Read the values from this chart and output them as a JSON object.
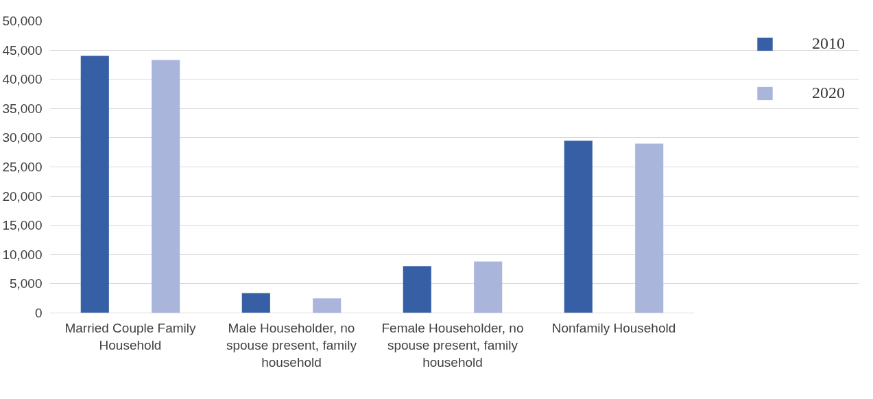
{
  "chart_data": {
    "type": "bar",
    "categories": [
      "Married Couple Family Household",
      "Male Householder, no spouse present, family household",
      "Female Householder, no spouse present, family household",
      "Nonfamily Household"
    ],
    "series": [
      {
        "name": "2010",
        "color": "#365fa5",
        "values": [
          44000,
          3400,
          8000,
          29500
        ]
      },
      {
        "name": "2020",
        "color": "#a9b5db",
        "values": [
          43300,
          2500,
          8800,
          29000
        ]
      }
    ],
    "ylim": [
      0,
      50000
    ],
    "yticks": [
      {
        "value": 0,
        "label": "0"
      },
      {
        "value": 5000,
        "label": "5,000"
      },
      {
        "value": 10000,
        "label": "10,000"
      },
      {
        "value": 15000,
        "label": "15,000"
      },
      {
        "value": 20000,
        "label": "20,000"
      },
      {
        "value": 25000,
        "label": "25,000"
      },
      {
        "value": 30000,
        "label": "30,000"
      },
      {
        "value": 35000,
        "label": "35,000"
      },
      {
        "value": 40000,
        "label": "40,000"
      },
      {
        "value": 45000,
        "label": "45,000"
      },
      {
        "value": 50000,
        "label": "50,000"
      }
    ],
    "grid": "y",
    "legend": "right"
  }
}
